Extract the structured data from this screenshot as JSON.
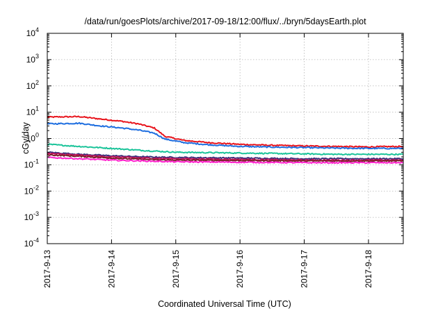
{
  "chart_data": {
    "type": "line",
    "title": "/data/run/goesPlots/archive/2017-09-18/12:00/flux/../bryn/5daysEarth.plot",
    "xlabel": "Coordinated Universal Time (UTC)",
    "ylabel": "cGy/day",
    "y_scale": "log",
    "ylim": [
      0.0001,
      10000
    ],
    "y_ticks": [
      {
        "base": "10",
        "exp": "4"
      },
      {
        "base": "10",
        "exp": "3"
      },
      {
        "base": "10",
        "exp": "2"
      },
      {
        "base": "10",
        "exp": "1"
      },
      {
        "base": "10",
        "exp": "0"
      },
      {
        "base": "10",
        "exp": "-1"
      },
      {
        "base": "10",
        "exp": "-2"
      },
      {
        "base": "10",
        "exp": "-3"
      },
      {
        "base": "10",
        "exp": "-4"
      }
    ],
    "x_ticks": [
      "2017-9-13",
      "2017-9-14",
      "2017-9-15",
      "2017-9-16",
      "2017-9-17",
      "2017-9-18"
    ],
    "xlim": [
      "2017-09-13T00:00",
      "2017-09-18T13:00"
    ],
    "grid": true,
    "legend": "none",
    "series": [
      {
        "color": "#e8141c",
        "points": [
          [
            "2017-09-13T00:00",
            6.5
          ],
          [
            "2017-09-13T12:00",
            6.8
          ],
          [
            "2017-09-13T20:00",
            5.5
          ],
          [
            "2017-09-14T04:00",
            4.5
          ],
          [
            "2017-09-14T10:00",
            3.6
          ],
          [
            "2017-09-14T16:00",
            2.5
          ],
          [
            "2017-09-14T20:00",
            1.2
          ],
          [
            "2017-09-15T03:00",
            0.85
          ],
          [
            "2017-09-15T12:00",
            0.7
          ],
          [
            "2017-09-16T00:00",
            0.6
          ],
          [
            "2017-09-16T12:00",
            0.55
          ],
          [
            "2017-09-17T00:00",
            0.52
          ],
          [
            "2017-09-17T12:00",
            0.5
          ],
          [
            "2017-09-18T00:00",
            0.48
          ],
          [
            "2017-09-18T13:00",
            0.5
          ]
        ]
      },
      {
        "color": "#1f6fe0",
        "points": [
          [
            "2017-09-13T00:00",
            3.6
          ],
          [
            "2017-09-13T12:00",
            3.8
          ],
          [
            "2017-09-13T20:00",
            3.0
          ],
          [
            "2017-09-14T04:00",
            2.5
          ],
          [
            "2017-09-14T10:00",
            2.1
          ],
          [
            "2017-09-14T16:00",
            1.6
          ],
          [
            "2017-09-14T20:00",
            0.95
          ],
          [
            "2017-09-15T03:00",
            0.7
          ],
          [
            "2017-09-15T12:00",
            0.58
          ],
          [
            "2017-09-16T00:00",
            0.5
          ],
          [
            "2017-09-16T12:00",
            0.47
          ],
          [
            "2017-09-17T00:00",
            0.45
          ],
          [
            "2017-09-17T12:00",
            0.43
          ],
          [
            "2017-09-18T00:00",
            0.42
          ],
          [
            "2017-09-18T13:00",
            0.42
          ]
        ]
      },
      {
        "color": "#1cc49a",
        "points": [
          [
            "2017-09-13T00:00",
            0.6
          ],
          [
            "2017-09-13T12:00",
            0.5
          ],
          [
            "2017-09-14T00:00",
            0.42
          ],
          [
            "2017-09-14T12:00",
            0.35
          ],
          [
            "2017-09-15T00:00",
            0.3
          ],
          [
            "2017-09-15T12:00",
            0.29
          ],
          [
            "2017-09-16T00:00",
            0.28
          ],
          [
            "2017-09-16T12:00",
            0.27
          ],
          [
            "2017-09-17T00:00",
            0.26
          ],
          [
            "2017-09-17T12:00",
            0.25
          ],
          [
            "2017-09-18T00:00",
            0.25
          ],
          [
            "2017-09-18T13:00",
            0.25
          ]
        ]
      },
      {
        "color": "#3a2f7a",
        "points": [
          [
            "2017-09-13T00:00",
            0.3
          ],
          [
            "2017-09-13T12:00",
            0.25
          ],
          [
            "2017-09-14T00:00",
            0.22
          ],
          [
            "2017-09-14T12:00",
            0.2
          ],
          [
            "2017-09-15T00:00",
            0.19
          ],
          [
            "2017-09-16T00:00",
            0.18
          ],
          [
            "2017-09-17T00:00",
            0.17
          ],
          [
            "2017-09-18T00:00",
            0.17
          ],
          [
            "2017-09-18T13:00",
            0.17
          ]
        ]
      },
      {
        "color": "#c4135a",
        "points": [
          [
            "2017-09-13T00:00",
            0.27
          ],
          [
            "2017-09-13T12:00",
            0.23
          ],
          [
            "2017-09-14T00:00",
            0.2
          ],
          [
            "2017-09-14T12:00",
            0.18
          ],
          [
            "2017-09-15T00:00",
            0.17
          ],
          [
            "2017-09-16T00:00",
            0.16
          ],
          [
            "2017-09-17T00:00",
            0.15
          ],
          [
            "2017-09-18T00:00",
            0.15
          ],
          [
            "2017-09-18T13:00",
            0.15
          ]
        ]
      },
      {
        "color": "#7a1f2a",
        "points": [
          [
            "2017-09-13T00:00",
            0.24
          ],
          [
            "2017-09-13T12:00",
            0.21
          ],
          [
            "2017-09-14T00:00",
            0.18
          ],
          [
            "2017-09-14T12:00",
            0.16
          ],
          [
            "2017-09-15T00:00",
            0.15
          ],
          [
            "2017-09-16T00:00",
            0.145
          ],
          [
            "2017-09-17T00:00",
            0.14
          ],
          [
            "2017-09-18T00:00",
            0.14
          ],
          [
            "2017-09-18T13:00",
            0.14
          ]
        ]
      },
      {
        "color": "#ff22cc",
        "points": [
          [
            "2017-09-13T00:00",
            0.19
          ],
          [
            "2017-09-13T12:00",
            0.17
          ],
          [
            "2017-09-14T00:00",
            0.15
          ],
          [
            "2017-09-14T12:00",
            0.14
          ],
          [
            "2017-09-15T00:00",
            0.13
          ],
          [
            "2017-09-16T00:00",
            0.125
          ],
          [
            "2017-09-17T00:00",
            0.12
          ],
          [
            "2017-09-18T00:00",
            0.12
          ],
          [
            "2017-09-18T13:00",
            0.12
          ]
        ]
      }
    ]
  }
}
